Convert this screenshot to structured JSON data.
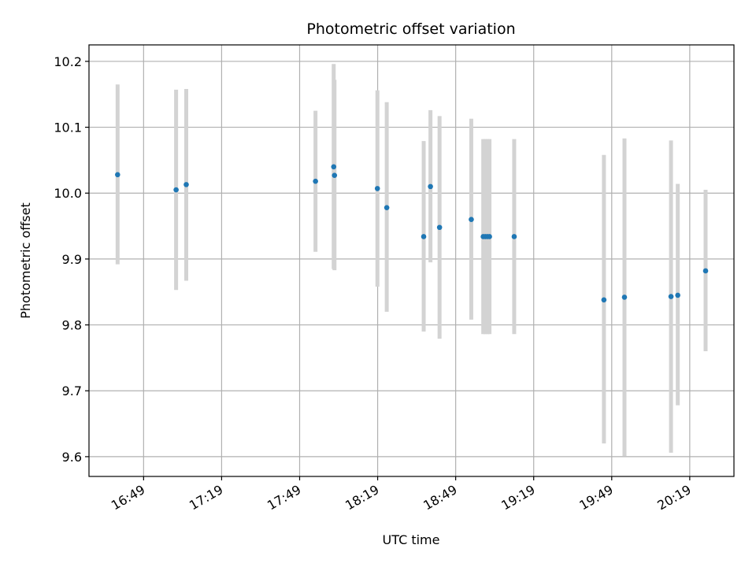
{
  "chart_data": {
    "type": "scatter",
    "title": "Photometric offset variation",
    "xlabel": "UTC time",
    "ylabel": "Photometric offset",
    "x_unit": "UTC clock time (HH:MM)",
    "xlim": [
      "16:28",
      "20:36"
    ],
    "ylim": [
      9.57,
      10.225
    ],
    "xticks": [
      "16:49",
      "17:19",
      "17:49",
      "18:19",
      "18:49",
      "19:19",
      "19:49",
      "20:19"
    ],
    "yticks": [
      "9.6",
      "9.7",
      "9.8",
      "9.9",
      "10.0",
      "10.1",
      "10.2"
    ],
    "grid": true,
    "point_color": "#1f77b4",
    "errorbar_color": "#d3d3d3",
    "series": [
      {
        "points": [
          {
            "x": "16:39:00",
            "y": 10.028,
            "yerr_low": 9.892,
            "yerr_high": 10.165
          },
          {
            "x": "17:01:30",
            "y": 10.005,
            "yerr_low": 9.853,
            "yerr_high": 10.157
          },
          {
            "x": "17:05:24",
            "y": 10.013,
            "yerr_low": 9.867,
            "yerr_high": 10.158
          },
          {
            "x": "17:55:06",
            "y": 10.018,
            "yerr_low": 9.911,
            "yerr_high": 10.125
          },
          {
            "x": "18:02:06",
            "y": 10.04,
            "yerr_low": 9.885,
            "yerr_high": 10.196
          },
          {
            "x": "18:02:24",
            "y": 10.027,
            "yerr_low": 9.883,
            "yerr_high": 10.172
          },
          {
            "x": "18:18:54",
            "y": 10.007,
            "yerr_low": 9.858,
            "yerr_high": 10.156
          },
          {
            "x": "18:22:30",
            "y": 9.978,
            "yerr_low": 9.82,
            "yerr_high": 10.138
          },
          {
            "x": "18:36:42",
            "y": 9.934,
            "yerr_low": 9.79,
            "yerr_high": 10.079
          },
          {
            "x": "18:39:18",
            "y": 10.01,
            "yerr_low": 9.895,
            "yerr_high": 10.126
          },
          {
            "x": "18:42:48",
            "y": 9.948,
            "yerr_low": 9.779,
            "yerr_high": 10.117
          },
          {
            "x": "18:55:00",
            "y": 9.96,
            "yerr_low": 9.808,
            "yerr_high": 10.113
          },
          {
            "x": "18:59:36",
            "y": 9.934,
            "yerr_low": 9.786,
            "yerr_high": 10.082
          },
          {
            "x": "19:00:24",
            "y": 9.934,
            "yerr_low": 9.786,
            "yerr_high": 10.082
          },
          {
            "x": "19:01:12",
            "y": 9.934,
            "yerr_low": 9.786,
            "yerr_high": 10.082
          },
          {
            "x": "19:02:00",
            "y": 9.934,
            "yerr_low": 9.786,
            "yerr_high": 10.082
          },
          {
            "x": "19:11:30",
            "y": 9.934,
            "yerr_low": 9.786,
            "yerr_high": 10.082
          },
          {
            "x": "19:46:00",
            "y": 9.838,
            "yerr_low": 9.62,
            "yerr_high": 10.058
          },
          {
            "x": "19:53:54",
            "y": 9.842,
            "yerr_low": 9.601,
            "yerr_high": 10.083
          },
          {
            "x": "20:11:48",
            "y": 9.843,
            "yerr_low": 9.606,
            "yerr_high": 10.08
          },
          {
            "x": "20:14:24",
            "y": 9.845,
            "yerr_low": 9.678,
            "yerr_high": 10.014
          },
          {
            "x": "20:25:06",
            "y": 9.882,
            "yerr_low": 9.76,
            "yerr_high": 10.005
          }
        ]
      }
    ]
  }
}
